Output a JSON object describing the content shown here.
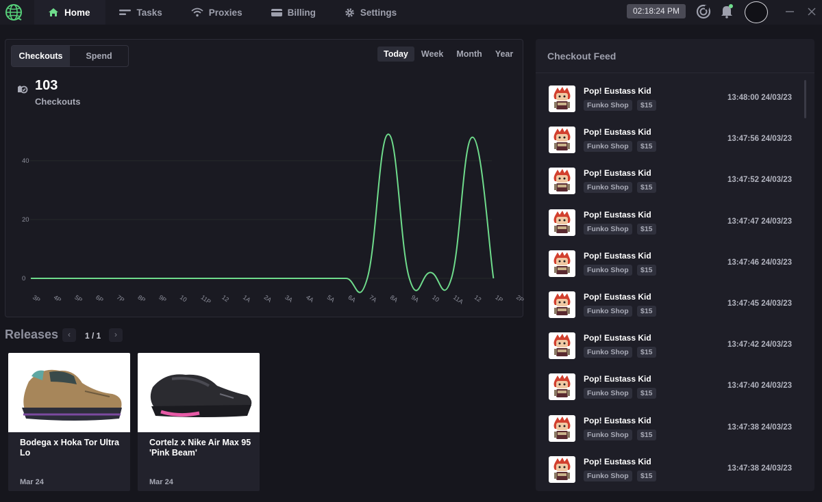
{
  "nav": {
    "items": [
      {
        "label": "Home",
        "icon": "home-icon",
        "active": true
      },
      {
        "label": "Tasks",
        "icon": "tasks-icon",
        "active": false
      },
      {
        "label": "Proxies",
        "icon": "wifi-icon",
        "active": false
      },
      {
        "label": "Billing",
        "icon": "card-icon",
        "active": false
      },
      {
        "label": "Settings",
        "icon": "gear-icon",
        "active": false
      }
    ],
    "clock": "02:18:24 PM"
  },
  "colors": {
    "accent": "#6fdc8c",
    "bg": "#16161d",
    "card": "#1a1a22",
    "feed": "#1e1e27"
  },
  "chart_panel": {
    "metric_tabs": [
      "Checkouts",
      "Spend"
    ],
    "active_metric": "Checkouts",
    "ranges": [
      "Today",
      "Week",
      "Month",
      "Year"
    ],
    "active_range": "Today",
    "total": "103",
    "total_label": "Checkouts"
  },
  "chart_data": {
    "type": "line",
    "x": [
      "3P",
      "4P",
      "5P",
      "6P",
      "7P",
      "8P",
      "9P",
      "10",
      "11P",
      "12",
      "1A",
      "2A",
      "3A",
      "4A",
      "5A",
      "6A",
      "7A",
      "8A",
      "9A",
      "10",
      "11A",
      "12",
      "1P",
      "2P"
    ],
    "series": [
      {
        "values": [
          0,
          0,
          0,
          0,
          0,
          0,
          0,
          0,
          0,
          0,
          0,
          0,
          0,
          0,
          0,
          0,
          0,
          49,
          0,
          2,
          0,
          48,
          0,
          null
        ]
      }
    ],
    "yticks": [
      0,
      20,
      40
    ],
    "ylim": [
      0,
      50
    ],
    "grid": true
  },
  "releases": {
    "title": "Releases",
    "page": "1 / 1",
    "items": [
      {
        "name": "Bodega x Hoka Tor Ultra Lo",
        "date": "Mar 24"
      },
      {
        "name": "Cortelz x Nike Air Max 95 'Pink Beam'",
        "date": "Mar 24"
      }
    ]
  },
  "feed": {
    "title": "Checkout Feed",
    "items": [
      {
        "product": "Pop! Eustass Kid",
        "store": "Funko Shop",
        "price": "$15",
        "time": "13:48:00 24/03/23"
      },
      {
        "product": "Pop! Eustass Kid",
        "store": "Funko Shop",
        "price": "$15",
        "time": "13:47:56 24/03/23"
      },
      {
        "product": "Pop! Eustass Kid",
        "store": "Funko Shop",
        "price": "$15",
        "time": "13:47:52 24/03/23"
      },
      {
        "product": "Pop! Eustass Kid",
        "store": "Funko Shop",
        "price": "$15",
        "time": "13:47:47 24/03/23"
      },
      {
        "product": "Pop! Eustass Kid",
        "store": "Funko Shop",
        "price": "$15",
        "time": "13:47:46 24/03/23"
      },
      {
        "product": "Pop! Eustass Kid",
        "store": "Funko Shop",
        "price": "$15",
        "time": "13:47:45 24/03/23"
      },
      {
        "product": "Pop! Eustass Kid",
        "store": "Funko Shop",
        "price": "$15",
        "time": "13:47:42 24/03/23"
      },
      {
        "product": "Pop! Eustass Kid",
        "store": "Funko Shop",
        "price": "$15",
        "time": "13:47:40 24/03/23"
      },
      {
        "product": "Pop! Eustass Kid",
        "store": "Funko Shop",
        "price": "$15",
        "time": "13:47:38 24/03/23"
      },
      {
        "product": "Pop! Eustass Kid",
        "store": "Funko Shop",
        "price": "$15",
        "time": "13:47:38 24/03/23"
      }
    ]
  }
}
